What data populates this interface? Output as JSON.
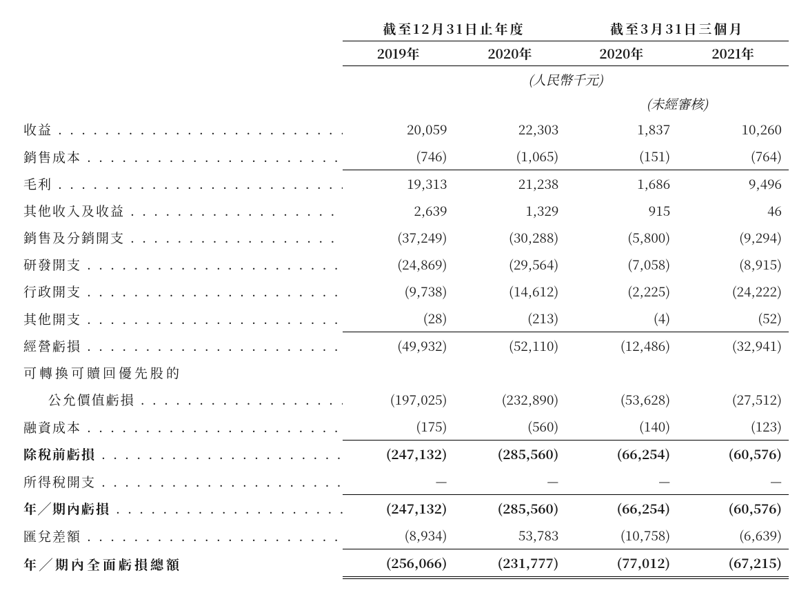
{
  "header": {
    "span_year": "截至12月31日止年度",
    "span_quarter": "截至3月31日三個月",
    "y2019": "2019年",
    "y2020": "2020年",
    "q2020": "2020年",
    "q2021": "2021年",
    "unit": "(人民幣千元)",
    "unaudited": "(未經審核)"
  },
  "rows": {
    "revenue": {
      "label": "收益",
      "c1": "20,059",
      "c2": "22,303",
      "c3": "1,837",
      "c4": "10,260"
    },
    "cogs": {
      "label": "銷售成本",
      "c1": "(746)",
      "c2": "(1,065)",
      "c3": "(151)",
      "c4": "(764)"
    },
    "gross": {
      "label": "毛利",
      "c1": "19,313",
      "c2": "21,238",
      "c3": "1,686",
      "c4": "9,496"
    },
    "other_income": {
      "label": "其他收入及收益",
      "c1": "2,639",
      "c2": "1,329",
      "c3": "915",
      "c4": "46"
    },
    "selling": {
      "label": "銷售及分銷開支",
      "c1": "(37,249)",
      "c2": "(30,288)",
      "c3": "(5,800)",
      "c4": "(9,294)"
    },
    "rnd": {
      "label": "研發開支",
      "c1": "(24,869)",
      "c2": "(29,564)",
      "c3": "(7,058)",
      "c4": "(8,915)"
    },
    "admin": {
      "label": "行政開支",
      "c1": "(9,738)",
      "c2": "(14,612)",
      "c3": "(2,225)",
      "c4": "(24,222)"
    },
    "other_exp": {
      "label": "其他開支",
      "c1": "(28)",
      "c2": "(213)",
      "c3": "(4)",
      "c4": "(52)"
    },
    "op_loss": {
      "label": "經營虧損",
      "c1": "(49,932)",
      "c2": "(52,110)",
      "c3": "(12,486)",
      "c4": "(32,941)"
    },
    "conv_pref_l1": {
      "label": "可轉換可贖回優先股的"
    },
    "conv_pref_l2": {
      "label": "公允價值虧損",
      "c1": "(197,025)",
      "c2": "(232,890)",
      "c3": "(53,628)",
      "c4": "(27,512)"
    },
    "finance": {
      "label": "融資成本",
      "c1": "(175)",
      "c2": "(560)",
      "c3": "(140)",
      "c4": "(123)"
    },
    "pretax": {
      "label": "除稅前虧損",
      "c1": "(247,132)",
      "c2": "(285,560)",
      "c3": "(66,254)",
      "c4": "(60,576)"
    },
    "tax": {
      "label": "所得稅開支",
      "c1": "—",
      "c2": "—",
      "c3": "—",
      "c4": "—"
    },
    "period_loss": {
      "label": "年╱期內虧損",
      "c1": "(247,132)",
      "c2": "(285,560)",
      "c3": "(66,254)",
      "c4": "(60,576)"
    },
    "fx": {
      "label": "匯兌差額",
      "c1": "(8,934)",
      "c2": "53,783",
      "c3": "(10,758)",
      "c4": "(6,639)"
    },
    "total_comp": {
      "label": "年╱期內全面虧損總額",
      "c1": "(256,066)",
      "c2": "(231,777)",
      "c3": "(77,012)",
      "c4": "(67,215)"
    }
  },
  "style": {
    "font_size_pt": 14,
    "text_color": "#1a1a1a",
    "background": "#ffffff",
    "rule_color": "#000000"
  }
}
